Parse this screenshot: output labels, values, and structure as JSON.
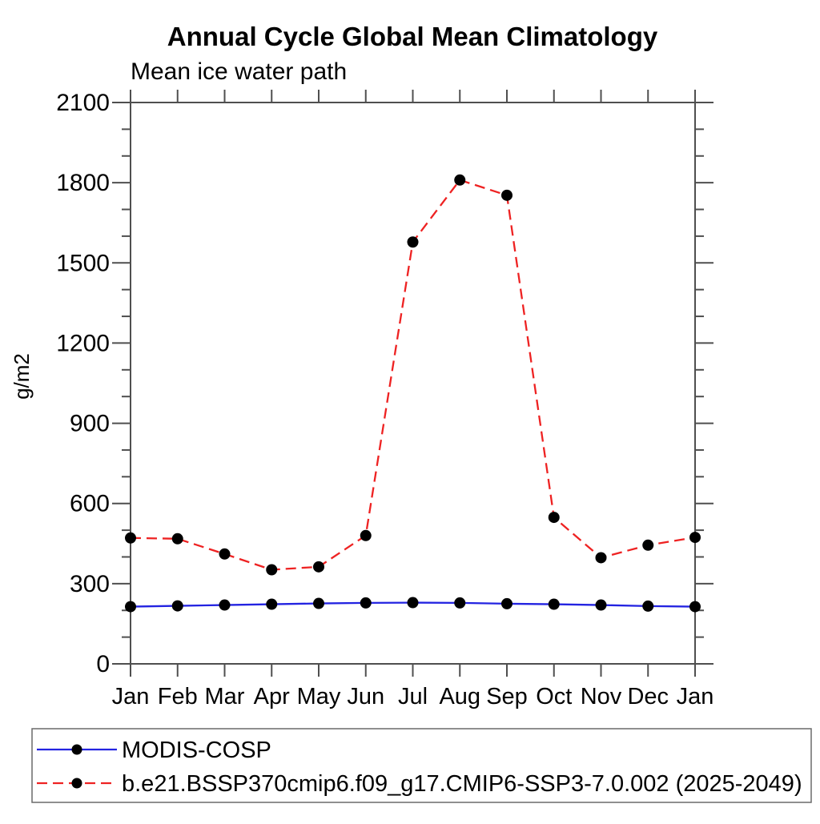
{
  "chart_data": {
    "type": "line",
    "title": "Annual Cycle Global Mean Climatology",
    "subtitle": "Mean ice water path",
    "ylabel": "g/m2",
    "categories": [
      "Jan",
      "Feb",
      "Mar",
      "Apr",
      "May",
      "Jun",
      "Jul",
      "Aug",
      "Sep",
      "Oct",
      "Nov",
      "Dec",
      "Jan"
    ],
    "ylim": [
      0,
      2100
    ],
    "y_major_ticks": [
      0,
      300,
      600,
      900,
      1200,
      1500,
      1800,
      2100
    ],
    "y_minor_interval": 100,
    "grid": false,
    "legend_position": "bottom-left-box",
    "axis_color": "#4f4f4f",
    "text_color": "#000000",
    "series": [
      {
        "name": "MODIS-COSP",
        "color": "#2323e1",
        "line_style": "solid",
        "marker": "filled-circle",
        "marker_color": "#000000",
        "values": [
          214,
          217,
          220,
          223,
          226,
          228,
          229,
          228,
          225,
          223,
          220,
          216,
          214
        ]
      },
      {
        "name": "b.e21.BSSP370cmip6.f09_g17.CMIP6-SSP3-7.0.002 (2025-2049)",
        "color": "#ee2222",
        "line_style": "dashed",
        "marker": "filled-circle",
        "marker_color": "#000000",
        "values": [
          471,
          468,
          411,
          352,
          363,
          480,
          1578,
          1810,
          1753,
          548,
          397,
          444,
          473
        ]
      }
    ]
  }
}
